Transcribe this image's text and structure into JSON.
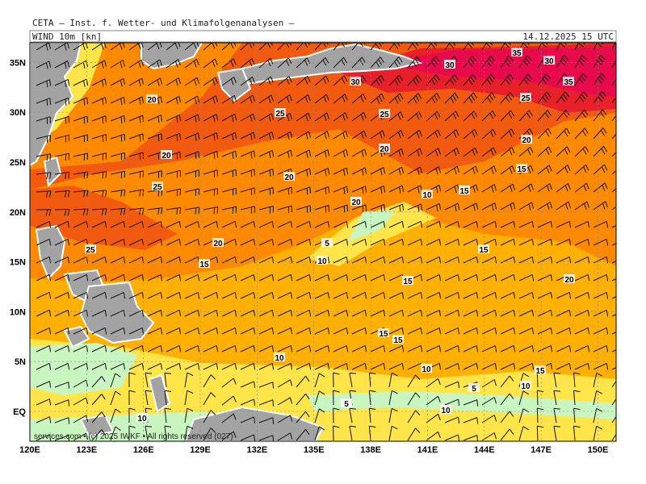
{
  "header": {
    "title": "CETA — Inst. f. Wetter- und Klimafolgenanalysen —",
    "field": "WIND 10m [kn]",
    "valid_time": "14.12.2025 15 UTC"
  },
  "map": {
    "lon_labels": [
      "120E",
      "123E",
      "126E",
      "129E",
      "132E",
      "135E",
      "138E",
      "141E",
      "144E",
      "147E",
      "150E"
    ],
    "lat_labels": [
      "EQ",
      "5N",
      "10N",
      "15N",
      "20N",
      "25N",
      "30N",
      "35N"
    ],
    "contour_labels": [
      "35",
      "30",
      "30",
      "35",
      "30",
      "25",
      "20",
      "25",
      "25",
      "20",
      "20",
      "20",
      "15",
      "20",
      "25",
      "10",
      "15",
      "20",
      "5",
      "10",
      "15",
      "25",
      "20",
      "15",
      "15",
      "20",
      "15",
      "15",
      "10",
      "10",
      "15",
      "10",
      "5",
      "5",
      "10",
      "10"
    ],
    "copyright": "services.com • (c) 2025 IWKF • All rights reserved (027)"
  }
}
